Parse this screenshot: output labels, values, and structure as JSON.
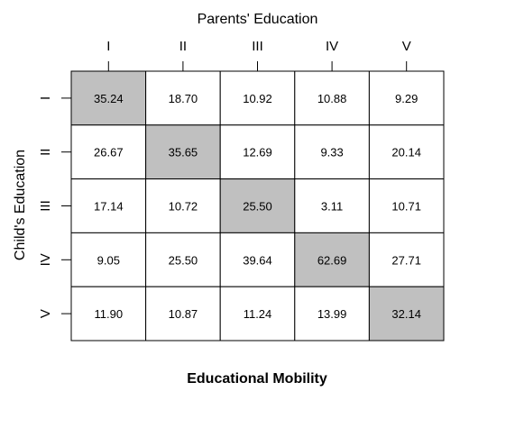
{
  "chart_data": {
    "type": "table",
    "title": "Educational Mobility",
    "xlabel": "Parents' Education",
    "ylabel": "Child's Education",
    "columns": [
      "I",
      "II",
      "III",
      "IV",
      "V"
    ],
    "rows": [
      "I",
      "II",
      "III",
      "IV",
      "V"
    ],
    "values": [
      [
        "35.24",
        "18.70",
        "10.92",
        "10.88",
        "9.29"
      ],
      [
        "26.67",
        "35.65",
        "12.69",
        "9.33",
        "20.14"
      ],
      [
        "17.14",
        "10.72",
        "25.50",
        "3.11",
        "10.71"
      ],
      [
        "9.05",
        "25.50",
        "39.64",
        "62.69",
        "27.71"
      ],
      [
        "11.90",
        "10.87",
        "11.24",
        "13.99",
        "32.14"
      ]
    ],
    "highlight": "diagonal",
    "colors": {
      "highlight": "#c0c0c0",
      "cell": "#ffffff",
      "border": "#000000"
    }
  }
}
